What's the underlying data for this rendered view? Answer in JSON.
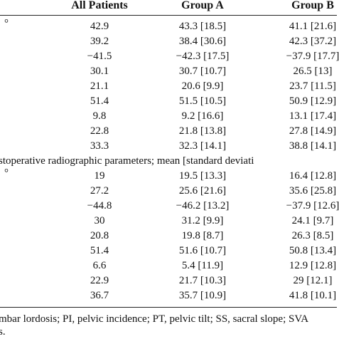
{
  "table": {
    "columns": [
      "All Patients",
      "Group A",
      "Group B"
    ],
    "sections": [
      {
        "first_label": "°",
        "rows": [
          [
            "42.9",
            "43.3 [18.5]",
            "41.1 [21.6]"
          ],
          [
            "39.2",
            "38.4 [30.6]",
            "42.3 [37.2]"
          ],
          [
            "−41.5",
            "−42.3 [17.5]",
            "−37.9 [17.7]"
          ],
          [
            "30.1",
            "30.7 [10.7]",
            "26.5 [13]"
          ],
          [
            "21.1",
            "20.6 [9.9]",
            "23.7 [11.5]"
          ],
          [
            "51.4",
            "51.5 [10.5]",
            "50.9 [12.9]"
          ],
          [
            "9.8",
            "9.2 [16.6]",
            "13.1 [17.4]"
          ],
          [
            "22.8",
            "21.8 [13.8]",
            "27.8 [14.9]"
          ],
          [
            "33.3",
            "32.3 [14.1]",
            "38.8 [14.1]"
          ]
        ]
      },
      {
        "title": "stoperative radiographic parameters; mean [standard deviati",
        "first_label": "°",
        "rows": [
          [
            "19",
            "19.5 [13.3]",
            "16.4 [12.8]"
          ],
          [
            "27.2",
            "25.6 [21.6]",
            "35.6 [25.8]"
          ],
          [
            "−44.8",
            "−46.2 [13.2]",
            "−37.9 [12.6]"
          ],
          [
            "30",
            "31.2 [9.9]",
            "24.1 [9.7]"
          ],
          [
            "20.8",
            "19.8 [8.7]",
            "26.3 [8.5]"
          ],
          [
            "51.4",
            "51.6 [10.7]",
            "50.8 [13.4]"
          ],
          [
            "6.6",
            "5.4 [11.9]",
            "12.9 [12.8]"
          ],
          [
            "22.9",
            "21.7 [10.3]",
            "29 [12.1]"
          ],
          [
            "36.7",
            "35.7 [10.9]",
            "41.8 [10.1]"
          ]
        ]
      }
    ],
    "footnote": [
      "mbar lordosis; PI, pelvic incidence; PT, pelvic tilt; SS, sacral slope; SVA",
      "s."
    ]
  }
}
